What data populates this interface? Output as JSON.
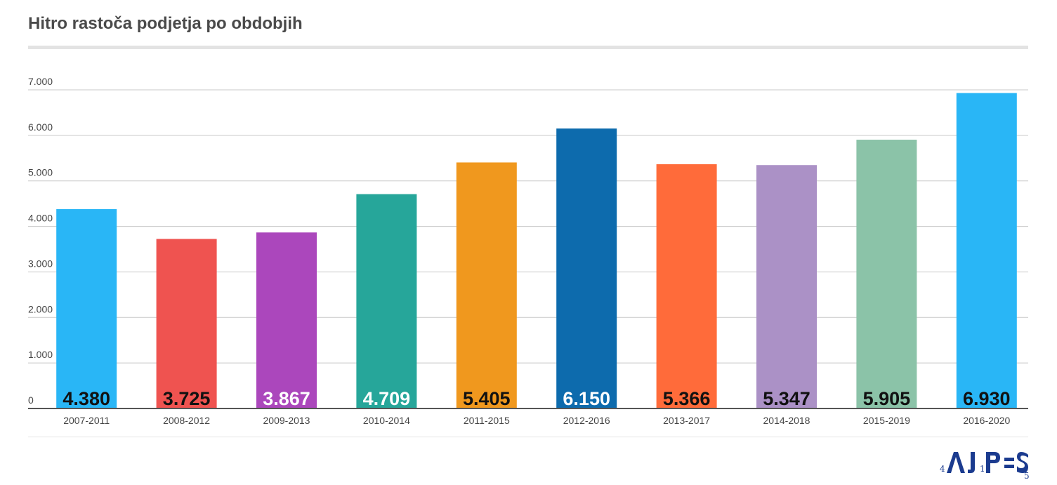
{
  "chart_data": {
    "type": "bar",
    "title": "Hitro rastoča podjetja po obdobjih",
    "categories": [
      "2007-2011",
      "2008-2012",
      "2009-2013",
      "2010-2014",
      "2011-2015",
      "2012-2016",
      "2013-2017",
      "2014-2018",
      "2015-2019",
      "2016-2020"
    ],
    "values": [
      4380,
      3725,
      3867,
      4709,
      5405,
      6150,
      5366,
      5347,
      5905,
      6930
    ],
    "value_labels": [
      "4.380",
      "3.725",
      "3.867",
      "4.709",
      "5.405",
      "6.150",
      "5.366",
      "5.347",
      "5.905",
      "6.930"
    ],
    "colors": [
      "#29b6f6",
      "#ef5350",
      "#ab47bc",
      "#26a69a",
      "#f0981e",
      "#0d6bad",
      "#ff6b3a",
      "#ab91c6",
      "#8bc3a8",
      "#29b6f6"
    ],
    "label_colors": [
      "#111111",
      "#111111",
      "#ffffff",
      "#ffffff",
      "#111111",
      "#ffffff",
      "#111111",
      "#111111",
      "#111111",
      "#111111"
    ],
    "yticks": [
      0,
      1000,
      2000,
      3000,
      4000,
      5000,
      6000,
      7000
    ],
    "ytick_labels": [
      "0",
      "1.000",
      "2.000",
      "3.000",
      "4.000",
      "5.000",
      "6.000",
      "7.000"
    ],
    "ylim": [
      0,
      7000
    ],
    "xlabel": "",
    "ylabel": "",
    "grid": true,
    "legend": "none"
  },
  "logo": {
    "text": "AJPES",
    "small_numbers": [
      "4",
      "1",
      "5"
    ]
  }
}
